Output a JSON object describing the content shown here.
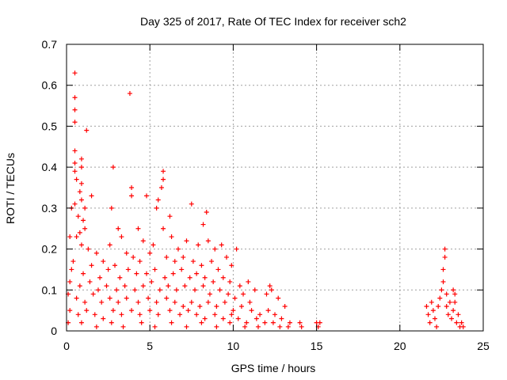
{
  "chart_data": {
    "type": "scatter",
    "title": "Day 325 of 2017, Rate Of TEC Index for receiver sch2",
    "xlabel": "GPS time / hours",
    "ylabel": "ROTI / TECUs",
    "xlim": [
      0,
      25
    ],
    "ylim": [
      0,
      0.7
    ],
    "x_ticks": [
      0,
      5,
      10,
      15,
      20,
      25
    ],
    "y_ticks": [
      0,
      0.1,
      0.2,
      0.3,
      0.4,
      0.5,
      0.6,
      0.7
    ],
    "grid": true,
    "marker": "plus",
    "color": "#ff0000",
    "series": [
      {
        "points": [
          [
            0.5,
            0.63
          ],
          [
            0.5,
            0.57
          ],
          [
            0.5,
            0.54
          ],
          [
            0.5,
            0.51
          ],
          [
            1.2,
            0.49
          ],
          [
            3.8,
            0.58
          ],
          [
            0.5,
            0.44
          ],
          [
            0.5,
            0.41
          ],
          [
            0.9,
            0.42
          ],
          [
            0.9,
            0.4
          ],
          [
            0.5,
            0.39
          ],
          [
            0.6,
            0.37
          ],
          [
            2.8,
            0.4
          ],
          [
            5.8,
            0.39
          ],
          [
            5.8,
            0.37
          ],
          [
            0.9,
            0.36
          ],
          [
            0.8,
            0.34
          ],
          [
            0.9,
            0.32
          ],
          [
            3.9,
            0.35
          ],
          [
            3.9,
            0.33
          ],
          [
            5.7,
            0.35
          ],
          [
            5.5,
            0.32
          ],
          [
            0.5,
            0.31
          ],
          [
            0.3,
            0.3
          ],
          [
            1.1,
            0.3
          ],
          [
            1.5,
            0.33
          ],
          [
            2.7,
            0.3
          ],
          [
            4.8,
            0.33
          ],
          [
            5.4,
            0.3
          ],
          [
            7.5,
            0.31
          ],
          [
            8.4,
            0.29
          ],
          [
            8.2,
            0.26
          ],
          [
            6.2,
            0.28
          ],
          [
            0.7,
            0.28
          ],
          [
            1.0,
            0.27
          ],
          [
            1.1,
            0.25
          ],
          [
            3.1,
            0.25
          ],
          [
            0.8,
            0.24
          ],
          [
            0.6,
            0.23
          ],
          [
            0.2,
            0.23
          ],
          [
            0.9,
            0.21
          ],
          [
            1.3,
            0.2
          ],
          [
            2.6,
            0.21
          ],
          [
            3.3,
            0.23
          ],
          [
            4.3,
            0.25
          ],
          [
            4.6,
            0.22
          ],
          [
            5.2,
            0.21
          ],
          [
            5.8,
            0.25
          ],
          [
            6.3,
            0.23
          ],
          [
            6.7,
            0.2
          ],
          [
            7.2,
            0.22
          ],
          [
            7.9,
            0.21
          ],
          [
            8.5,
            0.22
          ],
          [
            8.9,
            0.2
          ],
          [
            9.6,
            0.18
          ],
          [
            10.2,
            0.2
          ],
          [
            9.3,
            0.21
          ],
          [
            1.8,
            0.19
          ],
          [
            2.2,
            0.17
          ],
          [
            3.6,
            0.19
          ],
          [
            4.0,
            0.18
          ],
          [
            4.4,
            0.17
          ],
          [
            5.0,
            0.19
          ],
          [
            6.0,
            0.18
          ],
          [
            6.5,
            0.17
          ],
          [
            7.0,
            0.18
          ],
          [
            7.6,
            0.17
          ],
          [
            8.1,
            0.16
          ],
          [
            8.7,
            0.17
          ],
          [
            9.1,
            0.15
          ],
          [
            9.9,
            0.16
          ],
          [
            0.4,
            0.17
          ],
          [
            1.5,
            0.16
          ],
          [
            2.9,
            0.16
          ],
          [
            0.3,
            0.15
          ],
          [
            1.0,
            0.14
          ],
          [
            2.0,
            0.13
          ],
          [
            2.5,
            0.15
          ],
          [
            3.2,
            0.13
          ],
          [
            3.7,
            0.15
          ],
          [
            4.2,
            0.14
          ],
          [
            4.8,
            0.14
          ],
          [
            5.3,
            0.15
          ],
          [
            5.9,
            0.13
          ],
          [
            6.4,
            0.14
          ],
          [
            6.9,
            0.15
          ],
          [
            7.4,
            0.13
          ],
          [
            7.8,
            0.14
          ],
          [
            8.3,
            0.13
          ],
          [
            8.8,
            0.12
          ],
          [
            9.4,
            0.13
          ],
          [
            9.8,
            0.12
          ],
          [
            10.4,
            0.11
          ],
          [
            10.9,
            0.12
          ],
          [
            11.3,
            0.1
          ],
          [
            0.2,
            0.12
          ],
          [
            0.8,
            0.11
          ],
          [
            1.4,
            0.12
          ],
          [
            1.9,
            0.1
          ],
          [
            2.4,
            0.11
          ],
          [
            3.0,
            0.1
          ],
          [
            3.5,
            0.11
          ],
          [
            4.1,
            0.1
          ],
          [
            4.6,
            0.11
          ],
          [
            5.1,
            0.12
          ],
          [
            5.6,
            0.1
          ],
          [
            6.1,
            0.11
          ],
          [
            6.6,
            0.1
          ],
          [
            7.1,
            0.11
          ],
          [
            7.7,
            0.1
          ],
          [
            8.2,
            0.11
          ],
          [
            8.6,
            0.09
          ],
          [
            9.2,
            0.1
          ],
          [
            9.7,
            0.09
          ],
          [
            10.1,
            0.08
          ],
          [
            10.6,
            0.09
          ],
          [
            11.0,
            0.07
          ],
          [
            12.2,
            0.11
          ],
          [
            12.3,
            0.1
          ],
          [
            12.0,
            0.09
          ],
          [
            12.7,
            0.08
          ],
          [
            13.1,
            0.06
          ],
          [
            0.1,
            0.09
          ],
          [
            0.6,
            0.08
          ],
          [
            1.1,
            0.07
          ],
          [
            1.6,
            0.09
          ],
          [
            2.1,
            0.07
          ],
          [
            2.6,
            0.08
          ],
          [
            3.1,
            0.07
          ],
          [
            3.6,
            0.08
          ],
          [
            4.3,
            0.07
          ],
          [
            4.9,
            0.08
          ],
          [
            5.4,
            0.07
          ],
          [
            6.0,
            0.08
          ],
          [
            6.5,
            0.07
          ],
          [
            7.0,
            0.06
          ],
          [
            7.5,
            0.07
          ],
          [
            8.0,
            0.06
          ],
          [
            8.5,
            0.07
          ],
          [
            9.0,
            0.06
          ],
          [
            9.5,
            0.07
          ],
          [
            10.0,
            0.05
          ],
          [
            10.5,
            0.06
          ],
          [
            11.1,
            0.05
          ],
          [
            11.6,
            0.04
          ],
          [
            12.1,
            0.05
          ],
          [
            12.5,
            0.04
          ],
          [
            12.9,
            0.03
          ],
          [
            13.4,
            0.02
          ],
          [
            0.2,
            0.05
          ],
          [
            0.7,
            0.04
          ],
          [
            1.2,
            0.05
          ],
          [
            1.7,
            0.04
          ],
          [
            2.2,
            0.03
          ],
          [
            2.8,
            0.05
          ],
          [
            3.3,
            0.04
          ],
          [
            3.9,
            0.05
          ],
          [
            4.4,
            0.04
          ],
          [
            5.0,
            0.05
          ],
          [
            5.5,
            0.04
          ],
          [
            6.2,
            0.05
          ],
          [
            6.8,
            0.04
          ],
          [
            7.3,
            0.05
          ],
          [
            7.8,
            0.04
          ],
          [
            8.3,
            0.03
          ],
          [
            8.9,
            0.04
          ],
          [
            9.4,
            0.03
          ],
          [
            9.9,
            0.04
          ],
          [
            10.3,
            0.03
          ],
          [
            10.8,
            0.02
          ],
          [
            11.4,
            0.03
          ],
          [
            11.9,
            0.02
          ],
          [
            12.4,
            0.02
          ],
          [
            12.8,
            0.01
          ],
          [
            13.3,
            0.01
          ],
          [
            0.1,
            0.02
          ],
          [
            0.9,
            0.02
          ],
          [
            1.8,
            0.01
          ],
          [
            2.7,
            0.02
          ],
          [
            3.4,
            0.01
          ],
          [
            4.5,
            0.02
          ],
          [
            5.3,
            0.01
          ],
          [
            6.3,
            0.02
          ],
          [
            7.2,
            0.01
          ],
          [
            8.1,
            0.02
          ],
          [
            9.0,
            0.01
          ],
          [
            9.8,
            0.02
          ],
          [
            10.7,
            0.01
          ],
          [
            11.5,
            0.01
          ],
          [
            14.0,
            0.02
          ],
          [
            14.1,
            0.01
          ],
          [
            15.0,
            0.02
          ],
          [
            15.1,
            0.01
          ],
          [
            15.2,
            0.02
          ],
          [
            21.6,
            0.06
          ],
          [
            21.7,
            0.04
          ],
          [
            21.8,
            0.02
          ],
          [
            21.9,
            0.07
          ],
          [
            22.0,
            0.05
          ],
          [
            22.1,
            0.03
          ],
          [
            22.2,
            0.01
          ],
          [
            22.3,
            0.06
          ],
          [
            22.4,
            0.08
          ],
          [
            22.5,
            0.1
          ],
          [
            22.6,
            0.12
          ],
          [
            22.6,
            0.15
          ],
          [
            22.7,
            0.18
          ],
          [
            22.7,
            0.2
          ],
          [
            22.8,
            0.09
          ],
          [
            22.8,
            0.06
          ],
          [
            22.9,
            0.04
          ],
          [
            23.0,
            0.07
          ],
          [
            23.1,
            0.03
          ],
          [
            23.2,
            0.05
          ],
          [
            23.2,
            0.1
          ],
          [
            23.3,
            0.09
          ],
          [
            23.3,
            0.07
          ],
          [
            23.4,
            0.02
          ],
          [
            23.5,
            0.04
          ],
          [
            23.6,
            0.01
          ],
          [
            23.7,
            0.02
          ],
          [
            23.8,
            0.01
          ]
        ]
      }
    ]
  }
}
